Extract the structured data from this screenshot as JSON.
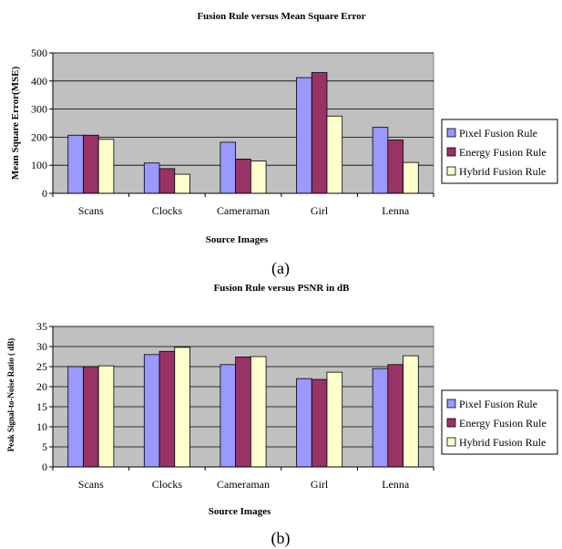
{
  "chart_data": [
    {
      "type": "bar",
      "title": "Fusion Rule versus Mean Square Error",
      "xlabel": "Source Images",
      "ylabel": "Mean Square Error(MSE)",
      "ylim": [
        0,
        500
      ],
      "yticks": [
        0,
        100,
        200,
        300,
        400,
        500
      ],
      "grid": true,
      "legend_position": "right",
      "categories": [
        "Scans",
        "Clocks",
        "Cameraman",
        "Girl",
        "Lenna"
      ],
      "series": [
        {
          "name": "Pixel Fusion Rule",
          "color": "#9999ff",
          "values": [
            207,
            108,
            182,
            412,
            235
          ]
        },
        {
          "name": "Energy Fusion Rule",
          "color": "#993366",
          "values": [
            207,
            88,
            122,
            430,
            190
          ]
        },
        {
          "name": "Hybrid Fusion Rule",
          "color": "#ffffcc",
          "values": [
            192,
            68,
            115,
            275,
            110
          ]
        }
      ],
      "caption": "(a)"
    },
    {
      "type": "bar",
      "title": "Fusion Rule versus PSNR in dB",
      "xlabel": "Source Images",
      "ylabel": "Peak Signal-to-Noise Ratio ( dB)",
      "ylim": [
        0,
        35
      ],
      "yticks": [
        0,
        5,
        10,
        15,
        20,
        25,
        30,
        35
      ],
      "grid": true,
      "legend_position": "right",
      "categories": [
        "Scans",
        "Clocks",
        "Cameraman",
        "Girl",
        "Lenna"
      ],
      "series": [
        {
          "name": "Pixel Fusion Rule",
          "color": "#9999ff",
          "values": [
            25.0,
            28.0,
            25.5,
            22.0,
            24.5
          ]
        },
        {
          "name": "Energy Fusion Rule",
          "color": "#993366",
          "values": [
            25.0,
            28.8,
            27.4,
            21.8,
            25.5
          ]
        },
        {
          "name": "Hybrid Fusion Rule",
          "color": "#ffffcc",
          "values": [
            25.2,
            29.8,
            27.5,
            23.6,
            27.7
          ]
        }
      ],
      "caption": "(b)"
    }
  ]
}
